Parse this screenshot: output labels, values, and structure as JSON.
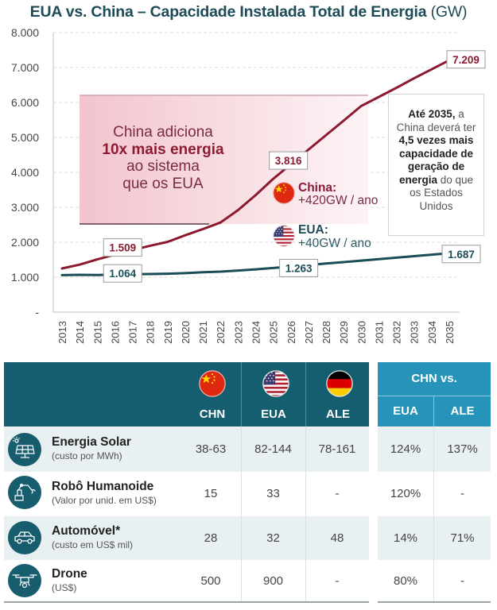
{
  "title": {
    "main": "EUA vs. China – Capacidade Instalada Total de Energia",
    "unit": "(GW)"
  },
  "colors": {
    "china_line": "#8b1a2e",
    "usa_line": "#1b4d58",
    "title": "#1d4b57",
    "table_header": "#155e70",
    "comparison_header": "#2893b8",
    "row_shade": "#e8f0f2"
  },
  "chart_data": {
    "type": "line",
    "title": "EUA vs. China – Capacidade Instalada Total de Energia (GW)",
    "xlabel": "",
    "ylabel": "",
    "x": [
      2013,
      2014,
      2015,
      2016,
      2017,
      2018,
      2019,
      2020,
      2021,
      2022,
      2023,
      2024,
      2025,
      2026,
      2027,
      2028,
      2029,
      2030,
      2031,
      2032,
      2033,
      2034,
      2035
    ],
    "xtick_labels": [
      "2013",
      "2014",
      "2015",
      "2016",
      "2017",
      "2018",
      "2019",
      "2020",
      "2021",
      "2022",
      "2023",
      "2024",
      "2025",
      "2026",
      "2027",
      "2028",
      "2029",
      "2030",
      "2031",
      "2032",
      "2033",
      "2034",
      "2035"
    ],
    "ylim": [
      0,
      8000
    ],
    "yticks": [
      0,
      1000,
      2000,
      3000,
      4000,
      5000,
      6000,
      7000,
      8000
    ],
    "ytick_labels": [
      "-",
      "1.000",
      "2.000",
      "3.000",
      "4.000",
      "5.000",
      "6.000",
      "7.000",
      "8.000"
    ],
    "grid": true,
    "series": [
      {
        "name": "China",
        "color": "#8b1a2e",
        "values": [
          1250,
          1360,
          1509,
          1650,
          1777,
          1900,
          2011,
          2200,
          2377,
          2564,
          2920,
          3349,
          3816,
          4230,
          4650,
          5065,
          5480,
          5900,
          6160,
          6420,
          6690,
          6950,
          7209
        ]
      },
      {
        "name": "EUA",
        "color": "#1b4d58",
        "values": [
          1060,
          1068,
          1064,
          1073,
          1085,
          1092,
          1100,
          1115,
          1140,
          1160,
          1190,
          1225,
          1263,
          1305,
          1347,
          1390,
          1432,
          1475,
          1517,
          1560,
          1602,
          1645,
          1687
        ]
      }
    ],
    "data_labels": [
      {
        "series": "China",
        "year": 2015,
        "value": 1509,
        "text": "1.509"
      },
      {
        "series": "EUA",
        "year": 2015,
        "value": 1064,
        "text": "1.064"
      },
      {
        "series": "China",
        "year": 2025,
        "value": 3816,
        "text": "3.816"
      },
      {
        "series": "EUA",
        "year": 2025,
        "value": 1263,
        "text": "1.263"
      },
      {
        "series": "China",
        "year": 2035,
        "value": 7209,
        "text": "7.209"
      },
      {
        "series": "EUA",
        "year": 2035,
        "value": 1687,
        "text": "1.687"
      }
    ],
    "annotations": {
      "highlight_box": {
        "line1": "China adiciona",
        "line2": "10x mais energia",
        "line3": "ao sistema",
        "line4": "que os EUA"
      },
      "legend": [
        {
          "flag": "china-flag",
          "name": "China:",
          "rate": "+420GW / ano"
        },
        {
          "flag": "usa-flag",
          "name": "EUA:",
          "rate": "+40GW / ano"
        }
      ],
      "info_box": {
        "l1_bold": "Até 2035,",
        "l1_rest": " a",
        "l2": "China deverá ter",
        "l3_bold": "4,5 vezes mais",
        "l4_bold": "capacidade de",
        "l5_bold": "geração de",
        "l6_bold": "energia",
        "l6_rest": " do que",
        "l7": "os Estados",
        "l8": "Unidos"
      }
    }
  },
  "table": {
    "columns": [
      {
        "code": "CHN",
        "flag": "china-flag"
      },
      {
        "code": "EUA",
        "flag": "usa-flag"
      },
      {
        "code": "ALE",
        "flag": "germany-flag"
      }
    ],
    "comparison": {
      "title": "CHN vs.",
      "columns": [
        "EUA",
        "ALE"
      ]
    },
    "rows": [
      {
        "icon": "solar-panel-icon",
        "title": "Energia Solar",
        "subtitle": "(custo por MWh)",
        "values": [
          "38-63",
          "82-144",
          "78-161"
        ],
        "comparison": [
          "124%",
          "137%"
        ]
      },
      {
        "icon": "robot-arm-icon",
        "title": "Robô Humanoide",
        "subtitle": "(Valor por unid. em US$)",
        "values": [
          "15",
          "33",
          "-"
        ],
        "comparison": [
          "120%",
          "-"
        ]
      },
      {
        "icon": "car-icon",
        "title": "Automóvel*",
        "subtitle": "(custo em US$ mil)",
        "values": [
          "28",
          "32",
          "48"
        ],
        "comparison": [
          "14%",
          "71%"
        ]
      },
      {
        "icon": "drone-icon",
        "title": "Drone",
        "subtitle": "(US$)",
        "values": [
          "500",
          "900",
          "-"
        ],
        "comparison": [
          "80%",
          "-"
        ]
      }
    ]
  }
}
